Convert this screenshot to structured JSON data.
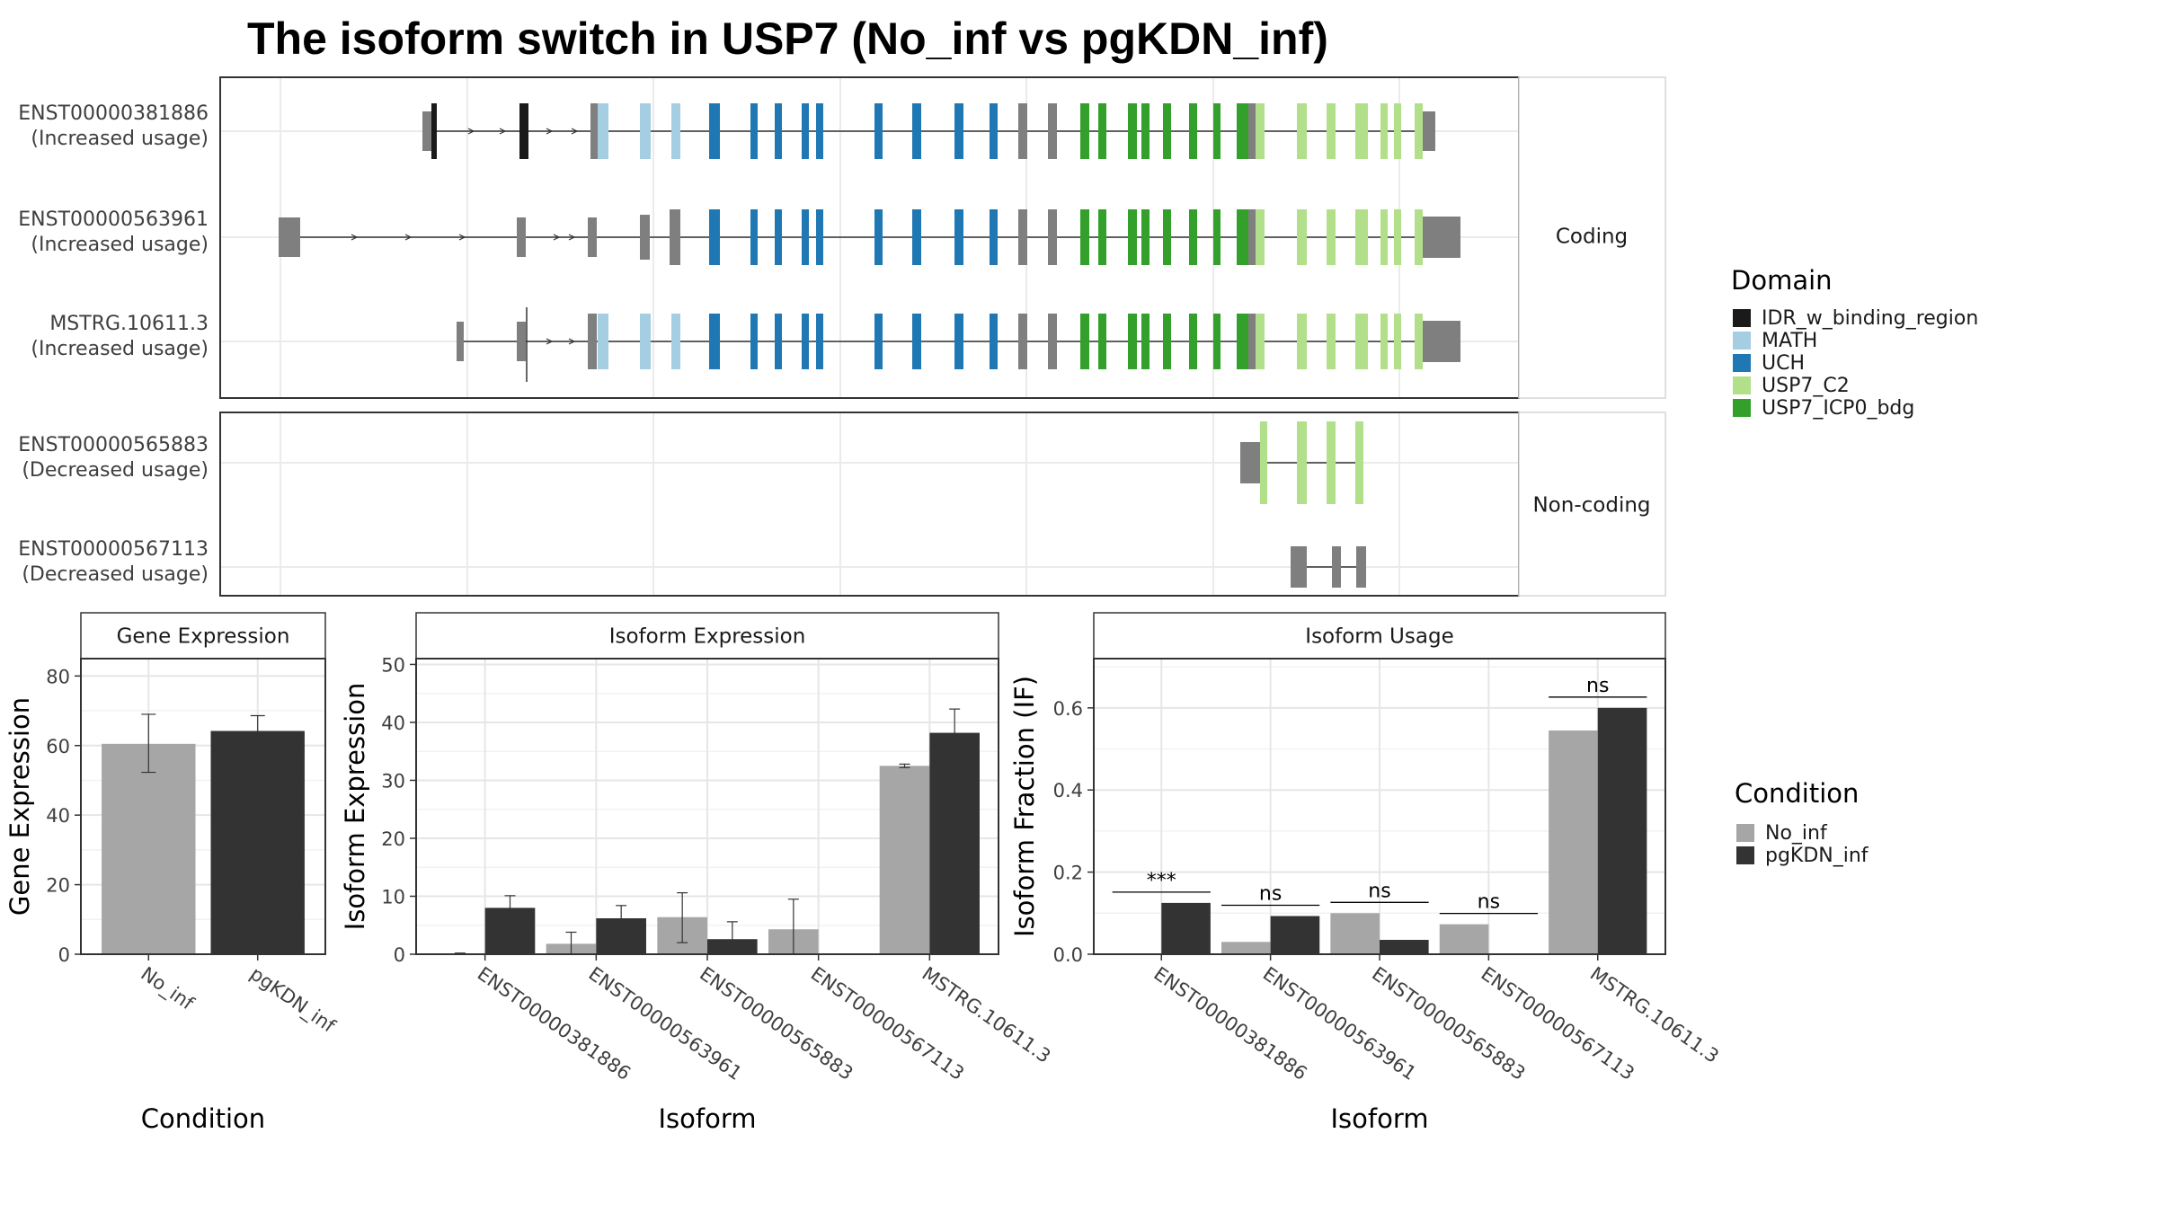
{
  "title": "The isoform switch in USP7 (No_inf vs pgKDN_inf)",
  "domain_legend": {
    "title": "Domain",
    "items": [
      {
        "label": "IDR_w_binding_region",
        "color": "#1a1a1a"
      },
      {
        "label": "MATH",
        "color": "#a6cee3"
      },
      {
        "label": "UCH",
        "color": "#1f78b4"
      },
      {
        "label": "USP7_C2",
        "color": "#b2df8a"
      },
      {
        "label": "USP7_ICP0_bdg",
        "color": "#33a02c"
      }
    ]
  },
  "condition_legend": {
    "title": "Condition",
    "items": [
      {
        "label": "No_inf",
        "color": "#a6a6a6"
      },
      {
        "label": "pgKDN_inf",
        "color": "#333333"
      }
    ]
  },
  "structure_panels": [
    {
      "label": "Coding",
      "isoforms": [
        {
          "id": "ENST00000381886",
          "usage": "(Increased usage)"
        },
        {
          "id": "ENST00000563961",
          "usage": "(Increased usage)"
        },
        {
          "id": "MSTRG.10611.3",
          "usage": "(Increased usage)"
        }
      ]
    },
    {
      "label": "Non-coding",
      "isoforms": [
        {
          "id": "ENST00000565883",
          "usage": "(Decreased usage)"
        },
        {
          "id": "ENST00000567113",
          "usage": "(Decreased usage)"
        }
      ]
    }
  ],
  "chart_data": [
    {
      "type": "bar",
      "title": "Gene Expression",
      "xlabel": "Condition",
      "ylabel": "Gene Expression",
      "ylim": [
        0,
        85
      ],
      "yticks": [
        0,
        20,
        40,
        60,
        80
      ],
      "categories": [
        "No_inf",
        "pgKDN_inf"
      ],
      "values": [
        60.5,
        64.2
      ],
      "error": [
        [
          52.3,
          69.0
        ],
        [
          59.8,
          68.6
        ]
      ]
    },
    {
      "type": "bar",
      "title": "Isoform Expression",
      "xlabel": "Isoform",
      "ylabel": "Isoform Expression",
      "ylim": [
        0,
        51
      ],
      "yticks": [
        0,
        10,
        20,
        30,
        40,
        50
      ],
      "categories": [
        "ENST00000381886",
        "ENST00000563961",
        "ENST00000565883",
        "ENST00000567113",
        "MSTRG.10611.3"
      ],
      "series": [
        {
          "name": "No_inf",
          "values": [
            0.1,
            1.8,
            6.4,
            4.3,
            32.5
          ],
          "error": [
            [
              0.0,
              0.2
            ],
            [
              0.0,
              3.8
            ],
            [
              2.0,
              10.6
            ],
            [
              0.0,
              9.5
            ],
            [
              32.2,
              32.8
            ]
          ]
        },
        {
          "name": "pgKDN_inf",
          "values": [
            8.0,
            6.2,
            2.6,
            0.0,
            38.2
          ],
          "error": [
            [
              5.7,
              10.1
            ],
            [
              4.0,
              8.4
            ],
            [
              0.0,
              5.6
            ],
            [
              0.0,
              0.0
            ],
            [
              34.0,
              42.3
            ]
          ]
        }
      ]
    },
    {
      "type": "bar",
      "title": "Isoform Usage",
      "xlabel": "Isoform",
      "ylabel": "Isoform Fraction (IF)",
      "ylim": [
        0,
        0.72
      ],
      "yticks": [
        "0.0",
        "0.2",
        "0.4",
        "0.6"
      ],
      "categories": [
        "ENST00000381886",
        "ENST00000563961",
        "ENST00000565883",
        "ENST00000567113",
        "MSTRG.10611.3"
      ],
      "series": [
        {
          "name": "No_inf",
          "values": [
            0.0,
            0.03,
            0.1,
            0.073,
            0.545
          ]
        },
        {
          "name": "pgKDN_inf",
          "values": [
            0.125,
            0.093,
            0.035,
            0.0,
            0.6
          ]
        }
      ],
      "significance": [
        "***",
        "ns",
        "ns",
        "ns",
        "ns"
      ]
    }
  ]
}
